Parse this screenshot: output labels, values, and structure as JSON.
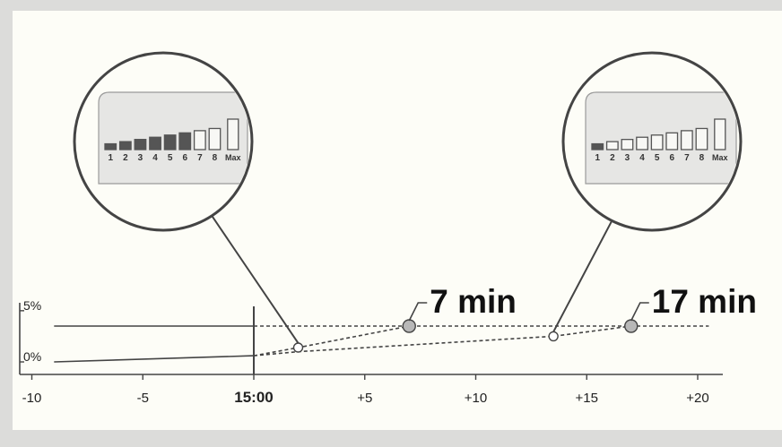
{
  "chart_data": {
    "type": "line",
    "title": "",
    "xlabel": "",
    "ylabel": "",
    "x_ticks": [
      "-10",
      "-5",
      "15:00",
      "+5",
      "+10",
      "+15",
      "+20"
    ],
    "x_tick_values": [
      -10,
      -5,
      0,
      5,
      10,
      15,
      20
    ],
    "xlim": [
      -10.5,
      20.5
    ],
    "y_ticks": [
      "5%",
      "0%"
    ],
    "y_tick_values": [
      5,
      0
    ],
    "ylim": [
      0,
      5
    ],
    "target_level": 3.5,
    "series": [
      {
        "style": "solid",
        "x": [
          -9,
          0
        ],
        "y": [
          0,
          0.6
        ]
      },
      {
        "style": "solid",
        "x": [
          -9,
          0
        ],
        "y": [
          3.5,
          3.5
        ]
      },
      {
        "style": "dashed",
        "x": [
          0,
          20.5
        ],
        "y": [
          3.5,
          3.5
        ]
      },
      {
        "style": "dashed",
        "x": [
          0,
          2,
          7
        ],
        "y": [
          0.6,
          1.4,
          3.5
        ]
      },
      {
        "style": "dashed",
        "x": [
          0,
          2,
          13.5,
          17
        ],
        "y": [
          0.6,
          1.0,
          2.5,
          3.5
        ]
      }
    ],
    "points": [
      {
        "x": 2,
        "y": 1.4,
        "kind": "open"
      },
      {
        "x": 13.5,
        "y": 2.5,
        "kind": "open"
      },
      {
        "x": 7,
        "y": 3.5,
        "kind": "filled",
        "label": "7 min"
      },
      {
        "x": 17,
        "y": 3.5,
        "kind": "filled",
        "label": "17 min"
      }
    ]
  },
  "callouts": [
    {
      "name": "left",
      "anchor": {
        "x": 2,
        "y": 1.4
      },
      "labels": [
        "1",
        "2",
        "3",
        "4",
        "5",
        "6",
        "7",
        "8",
        "Max"
      ],
      "levels": [
        1,
        2,
        3,
        4,
        5,
        6,
        7,
        8,
        9
      ],
      "filled_count": 6
    },
    {
      "name": "right",
      "anchor": {
        "x": 13.5,
        "y": 2.5
      },
      "labels": [
        "1",
        "2",
        "3",
        "4",
        "5",
        "6",
        "7",
        "8",
        "Max"
      ],
      "levels": [
        1,
        2,
        3,
        4,
        5,
        6,
        7,
        8,
        9
      ],
      "filled_count": 1
    }
  ],
  "colors": {
    "frame": "#dcdcda",
    "panel": "#fdfdf7",
    "line": "#444444",
    "marker_fill": "#b8b8b8",
    "bar_fill": "#555555",
    "zoom_bg": "#e6e6e4"
  }
}
